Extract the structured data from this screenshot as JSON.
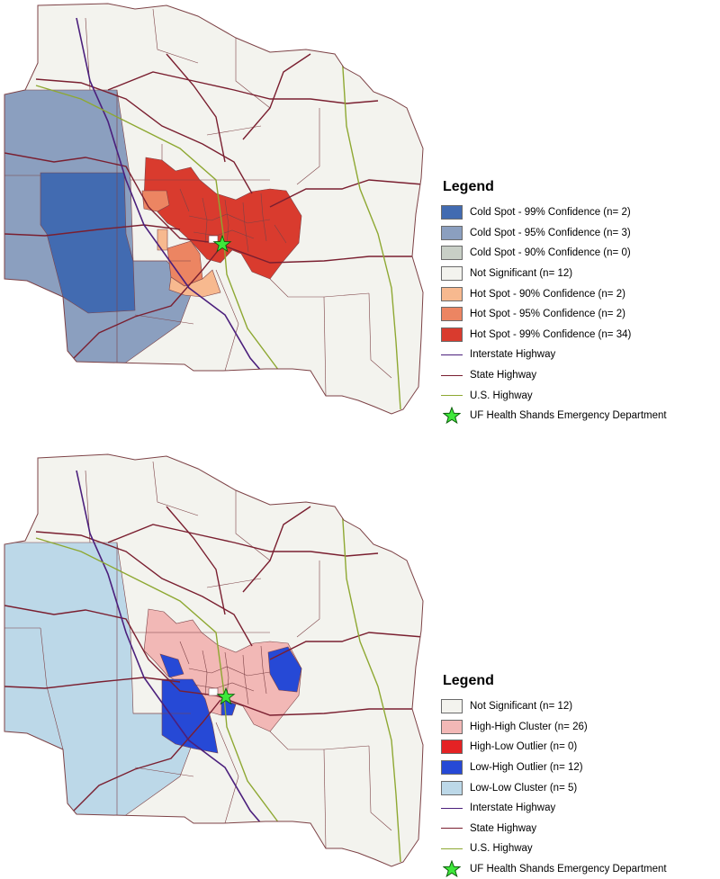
{
  "top_map": {
    "legend_title": "Legend",
    "legend_items": [
      {
        "label": "Cold Spot - 99% Confidence (n= 2)",
        "kind": "swatch",
        "color": "#426bb1"
      },
      {
        "label": "Cold Spot - 95% Confidence (n= 3)",
        "kind": "swatch",
        "color": "#8b9fbf"
      },
      {
        "label": "Cold Spot - 90% Confidence (n= 0)",
        "kind": "swatch",
        "color": "#c8cfc6"
      },
      {
        "label": "Not Significant (n= 12)",
        "kind": "swatch",
        "color": "#f3f3ee"
      },
      {
        "label": "Hot Spot - 90% Confidence (n= 2)",
        "kind": "swatch",
        "color": "#f7b98f"
      },
      {
        "label": "Hot Spot - 95% Confidence (n= 2)",
        "kind": "swatch",
        "color": "#ec8562"
      },
      {
        "label": "Hot Spot - 99% Confidence (n= 34)",
        "kind": "swatch",
        "color": "#d93b2e"
      },
      {
        "label": "Interstate Highway",
        "kind": "line",
        "color": "#4b1f7c"
      },
      {
        "label": "State Highway",
        "kind": "line",
        "color": "#7a1f30"
      },
      {
        "label": "U.S. Highway",
        "kind": "line",
        "color": "#8ea832"
      },
      {
        "label": "UF Health Shands Emergency Department",
        "kind": "star",
        "color": "#3ee83a"
      }
    ]
  },
  "bottom_map": {
    "legend_title": "Legend",
    "legend_items": [
      {
        "label": "Not Significant (n= 12)",
        "kind": "swatch",
        "color": "#f3f3ee"
      },
      {
        "label": "High-High Cluster (n= 26)",
        "kind": "swatch",
        "color": "#f2b8b6"
      },
      {
        "label": "High-Low Outlier (n= 0)",
        "kind": "swatch",
        "color": "#e42224"
      },
      {
        "label": "Low-High Outlier (n= 12)",
        "kind": "swatch",
        "color": "#2649d6"
      },
      {
        "label": "Low-Low Cluster (n= 5)",
        "kind": "swatch",
        "color": "#bcd8e8"
      },
      {
        "label": "Interstate Highway",
        "kind": "line",
        "color": "#4b1f7c"
      },
      {
        "label": "State Highway",
        "kind": "line",
        "color": "#7a1f30"
      },
      {
        "label": "U.S. Highway",
        "kind": "line",
        "color": "#8ea832"
      },
      {
        "label": "UF Health Shands Emergency Department",
        "kind": "star",
        "color": "#3ee83a"
      }
    ]
  },
  "colors": {
    "county_fill": "#f3f3ee",
    "boundary": "#7d4246",
    "interstate": "#4b1f7c",
    "state_highway": "#7a1f30",
    "us_highway": "#8ea832",
    "marker": "#3ee83a"
  }
}
